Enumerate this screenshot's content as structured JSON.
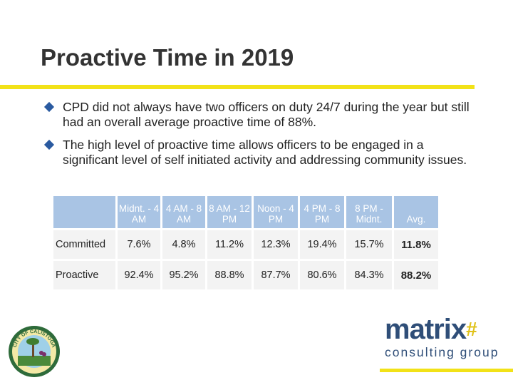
{
  "title": "Proactive Time in 2019",
  "bullets": [
    "CPD did not always have two officers on duty 24/7 during the year but still had an overall average proactive time of 88%.",
    "The high level of proactive time allows officers to be engaged in a significant level of self initiated activity and addressing community issues."
  ],
  "table": {
    "headers": [
      "Midnt. - 4 AM",
      "4 AM - 8 AM",
      "8 AM - 12 PM",
      "Noon - 4 PM",
      "4 PM - 8 PM",
      "8 PM - Midnt.",
      "Avg."
    ],
    "rows": [
      {
        "label": "Committed",
        "values": [
          "7.6%",
          "4.8%",
          "11.2%",
          "12.3%",
          "19.4%",
          "15.7%",
          "11.8%"
        ]
      },
      {
        "label": "Proactive",
        "values": [
          "92.4%",
          "95.2%",
          "88.8%",
          "87.7%",
          "80.6%",
          "84.3%",
          "88.2%"
        ]
      }
    ]
  },
  "logo": {
    "name": "matrix",
    "symbol": "#",
    "tagline": "consulting group"
  },
  "seal": {
    "text": "CITY OF CALISTOGA"
  },
  "colors": {
    "accent": "#f2e218",
    "bullet": "#2a5aa0",
    "header_fill": "#a9c4e4",
    "cell_fill": "#f3f3f3",
    "brand": "#2f4e78"
  }
}
